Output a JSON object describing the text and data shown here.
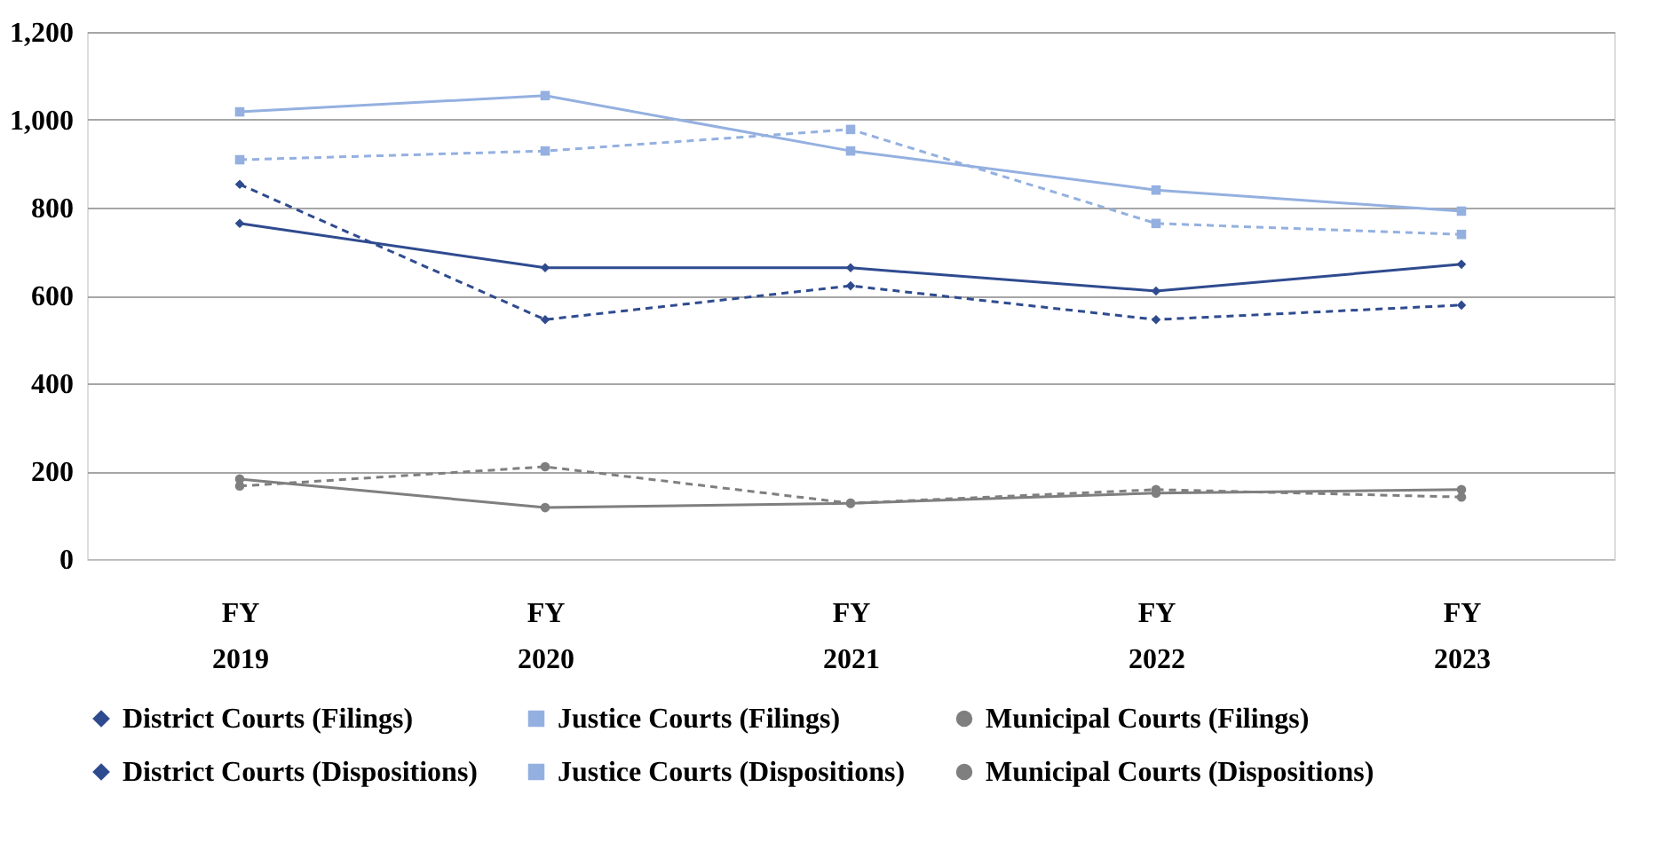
{
  "chart_data": {
    "type": "line",
    "categories": [
      "FY 2019",
      "FY 2020",
      "FY 2021",
      "FY 2022",
      "FY 2023"
    ],
    "series": [
      {
        "name": "District Courts (Filings)",
        "color": "#2f4b8f",
        "marker": "diamond",
        "line_style": "solid",
        "values": [
          764,
          663,
          663,
          610,
          671
        ]
      },
      {
        "name": "Justice Courts (Filings)",
        "color": "#94b0e0",
        "marker": "square",
        "line_style": "solid",
        "values": [
          1018,
          1055,
          929,
          840,
          792
        ]
      },
      {
        "name": "Municipal Courts (Filings)",
        "color": "#7f7f7f",
        "marker": "circle",
        "line_style": "solid",
        "values": [
          182,
          117,
          127,
          150,
          158
        ]
      },
      {
        "name": "District Courts (Dispositions)",
        "color": "#2f4b8f",
        "marker": "diamond",
        "line_style": "dashed",
        "values": [
          853,
          545,
          622,
          545,
          578
        ]
      },
      {
        "name": "Justice Courts (Dispositions)",
        "color": "#94b0e0",
        "marker": "square",
        "line_style": "dashed",
        "values": [
          909,
          929,
          978,
          764,
          739
        ]
      },
      {
        "name": "Municipal Courts (Dispositions)",
        "color": "#7f7f7f",
        "marker": "circle",
        "line_style": "dashed",
        "values": [
          166,
          210,
          127,
          158,
          141
        ]
      }
    ],
    "ylim": [
      0,
      1200
    ],
    "yticks": [
      0,
      200,
      400,
      600,
      800,
      {
        "value": 1000,
        "label": "1,000"
      },
      {
        "value": 1200,
        "label": "1,200"
      }
    ],
    "grid": "y",
    "legend": "bottom"
  }
}
